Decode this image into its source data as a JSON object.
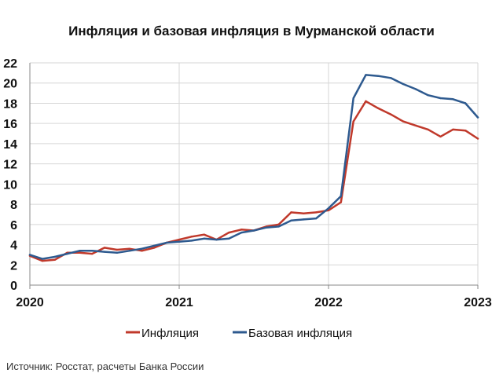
{
  "chart_data": {
    "type": "line",
    "title": "Инфляция и базовая инфляция в Мурманской области",
    "source": "Источник: Росстат, расчеты Банка России",
    "xlabel": "",
    "ylabel": "",
    "x_ticks": [
      "2020",
      "2021",
      "2022",
      "2023"
    ],
    "y_ticks": [
      "0",
      "2",
      "4",
      "6",
      "8",
      "10",
      "12",
      "14",
      "16",
      "18",
      "20",
      "22"
    ],
    "ylim": [
      0,
      22
    ],
    "xlim": [
      "2020-01",
      "2023-01"
    ],
    "grid": true,
    "legend_position": "bottom",
    "x": [
      "2020-01",
      "2020-02",
      "2020-03",
      "2020-04",
      "2020-05",
      "2020-06",
      "2020-07",
      "2020-08",
      "2020-09",
      "2020-10",
      "2020-11",
      "2020-12",
      "2021-01",
      "2021-02",
      "2021-03",
      "2021-04",
      "2021-05",
      "2021-06",
      "2021-07",
      "2021-08",
      "2021-09",
      "2021-10",
      "2021-11",
      "2021-12",
      "2022-01",
      "2022-02",
      "2022-03",
      "2022-04",
      "2022-05",
      "2022-06",
      "2022-07",
      "2022-08",
      "2022-09",
      "2022-10",
      "2022-11",
      "2022-12",
      "2023-01"
    ],
    "series": [
      {
        "name": "Инфляция",
        "color": "#c0392b",
        "values": [
          2.9,
          2.4,
          2.5,
          3.2,
          3.2,
          3.1,
          3.7,
          3.5,
          3.6,
          3.4,
          3.7,
          4.2,
          4.5,
          4.8,
          5.0,
          4.5,
          5.2,
          5.5,
          5.4,
          5.8,
          6.0,
          7.2,
          7.1,
          7.2,
          7.4,
          8.2,
          16.2,
          18.2,
          17.5,
          16.9,
          16.2,
          15.8,
          15.4,
          14.7,
          15.4,
          15.3,
          14.5
        ]
      },
      {
        "name": "Базовая инфляция",
        "color": "#2e5a8f",
        "values": [
          3.0,
          2.6,
          2.8,
          3.1,
          3.4,
          3.4,
          3.3,
          3.2,
          3.4,
          3.6,
          3.9,
          4.2,
          4.3,
          4.4,
          4.6,
          4.5,
          4.6,
          5.2,
          5.4,
          5.7,
          5.8,
          6.4,
          6.5,
          6.6,
          7.6,
          8.8,
          18.5,
          20.8,
          20.7,
          20.5,
          19.9,
          19.4,
          18.8,
          18.5,
          18.4,
          18.0,
          16.6
        ]
      }
    ]
  }
}
